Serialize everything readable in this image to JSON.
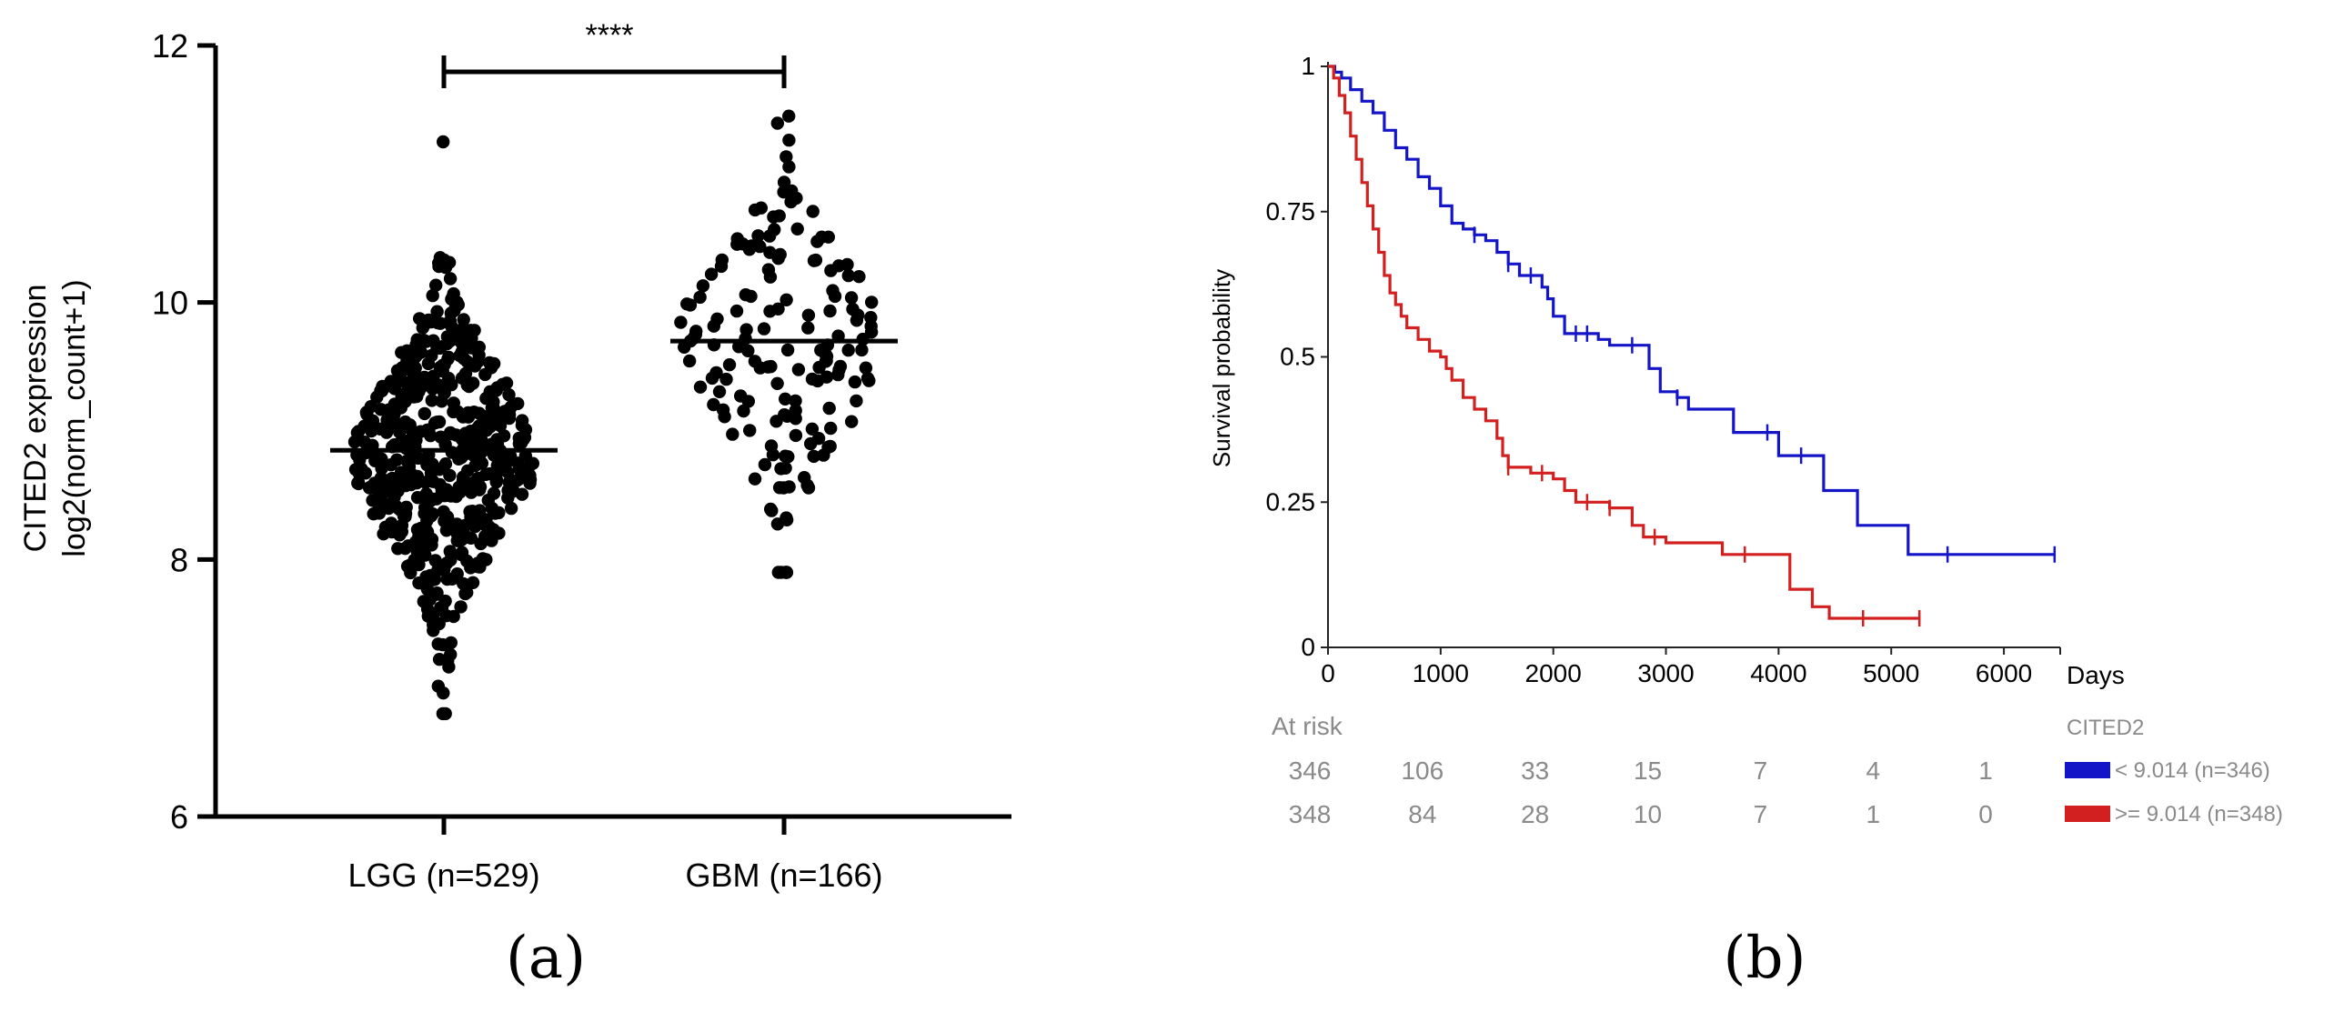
{
  "chart_data": [
    {
      "panel_label": "(a)",
      "type": "scatter",
      "subtype": "dot-strip plot with mean lines",
      "ylabel_line1": "CITED2 expression",
      "ylabel_line2": "log2(norm_count+1)",
      "ylim": [
        6,
        12
      ],
      "yticks": [
        "6",
        "8",
        "10",
        "12"
      ],
      "significance": "****",
      "groups": [
        {
          "name": "LGG (n=529)",
          "n": 529,
          "mean": 8.85,
          "min": 6.8,
          "max": 11.25,
          "center": 8.8,
          "sd": 0.65
        },
        {
          "name": "GBM (n=166)",
          "n": 166,
          "mean": 9.7,
          "min": 7.9,
          "max": 11.45,
          "center": 9.7,
          "sd": 0.65
        }
      ]
    },
    {
      "panel_label": "(b)",
      "type": "line",
      "subtype": "kaplan-meier step plot",
      "ylabel": "Survival probability",
      "xunit": "Days",
      "xlim": [
        0,
        6500
      ],
      "ylim": [
        0,
        1
      ],
      "xticks": [
        "0",
        "1000",
        "2000",
        "3000",
        "4000",
        "5000",
        "6000"
      ],
      "yticks": [
        "0",
        "0.25",
        "0.5",
        "0.75",
        "1"
      ],
      "legend_title": "CITED2",
      "at_risk_title": "At risk",
      "at_risk_times": [
        0,
        1000,
        2000,
        3000,
        4000,
        5000,
        6000
      ],
      "series": [
        {
          "name": "< 9.014 (n=346)",
          "color": "#1515c8",
          "at_risk": [
            "346",
            "106",
            "33",
            "15",
            "7",
            "4",
            "1"
          ],
          "points": [
            [
              0,
              1
            ],
            [
              60,
              0.99
            ],
            [
              120,
              0.98
            ],
            [
              200,
              0.96
            ],
            [
              300,
              0.94
            ],
            [
              400,
              0.92
            ],
            [
              500,
              0.89
            ],
            [
              600,
              0.86
            ],
            [
              700,
              0.84
            ],
            [
              800,
              0.81
            ],
            [
              900,
              0.79
            ],
            [
              1000,
              0.76
            ],
            [
              1100,
              0.73
            ],
            [
              1200,
              0.72
            ],
            [
              1300,
              0.71
            ],
            [
              1400,
              0.7
            ],
            [
              1500,
              0.68
            ],
            [
              1600,
              0.66
            ],
            [
              1700,
              0.64
            ],
            [
              1850,
              0.64
            ],
            [
              1900,
              0.62
            ],
            [
              1950,
              0.6
            ],
            [
              2000,
              0.57
            ],
            [
              2100,
              0.54
            ],
            [
              2400,
              0.53
            ],
            [
              2500,
              0.52
            ],
            [
              2800,
              0.52
            ],
            [
              2850,
              0.48
            ],
            [
              2950,
              0.44
            ],
            [
              3100,
              0.43
            ],
            [
              3200,
              0.41
            ],
            [
              3600,
              0.37
            ],
            [
              3800,
              0.37
            ],
            [
              4000,
              0.33
            ],
            [
              4400,
              0.27
            ],
            [
              4700,
              0.21
            ],
            [
              5150,
              0.16
            ],
            [
              6450,
              0.16
            ]
          ],
          "censors": [
            [
              1300,
              0.71
            ],
            [
              1600,
              0.66
            ],
            [
              1800,
              0.64
            ],
            [
              2200,
              0.54
            ],
            [
              2300,
              0.54
            ],
            [
              2700,
              0.52
            ],
            [
              3100,
              0.43
            ],
            [
              3900,
              0.37
            ],
            [
              4200,
              0.33
            ],
            [
              5500,
              0.16
            ],
            [
              6450,
              0.16
            ]
          ]
        },
        {
          "name": ">= 9.014 (n=348)",
          "color": "#d22020",
          "at_risk": [
            "348",
            "84",
            "28",
            "10",
            "7",
            "1",
            "0"
          ],
          "points": [
            [
              0,
              1
            ],
            [
              50,
              0.98
            ],
            [
              100,
              0.95
            ],
            [
              150,
              0.92
            ],
            [
              200,
              0.88
            ],
            [
              250,
              0.84
            ],
            [
              300,
              0.8
            ],
            [
              350,
              0.76
            ],
            [
              400,
              0.72
            ],
            [
              450,
              0.68
            ],
            [
              500,
              0.64
            ],
            [
              550,
              0.61
            ],
            [
              600,
              0.59
            ],
            [
              650,
              0.57
            ],
            [
              700,
              0.55
            ],
            [
              800,
              0.53
            ],
            [
              900,
              0.51
            ],
            [
              1000,
              0.5
            ],
            [
              1050,
              0.48
            ],
            [
              1100,
              0.46
            ],
            [
              1200,
              0.43
            ],
            [
              1300,
              0.41
            ],
            [
              1400,
              0.39
            ],
            [
              1500,
              0.36
            ],
            [
              1550,
              0.33
            ],
            [
              1600,
              0.31
            ],
            [
              1700,
              0.31
            ],
            [
              1800,
              0.3
            ],
            [
              2000,
              0.29
            ],
            [
              2100,
              0.27
            ],
            [
              2200,
              0.25
            ],
            [
              2500,
              0.24
            ],
            [
              2700,
              0.21
            ],
            [
              2800,
              0.19
            ],
            [
              3000,
              0.18
            ],
            [
              3500,
              0.16
            ],
            [
              4050,
              0.16
            ],
            [
              4100,
              0.1
            ],
            [
              4300,
              0.07
            ],
            [
              4450,
              0.05
            ],
            [
              5250,
              0.05
            ]
          ],
          "censors": [
            [
              1600,
              0.31
            ],
            [
              1900,
              0.3
            ],
            [
              2300,
              0.25
            ],
            [
              2500,
              0.24
            ],
            [
              2900,
              0.19
            ],
            [
              3700,
              0.16
            ],
            [
              4750,
              0.05
            ],
            [
              5250,
              0.05
            ]
          ]
        }
      ]
    }
  ]
}
